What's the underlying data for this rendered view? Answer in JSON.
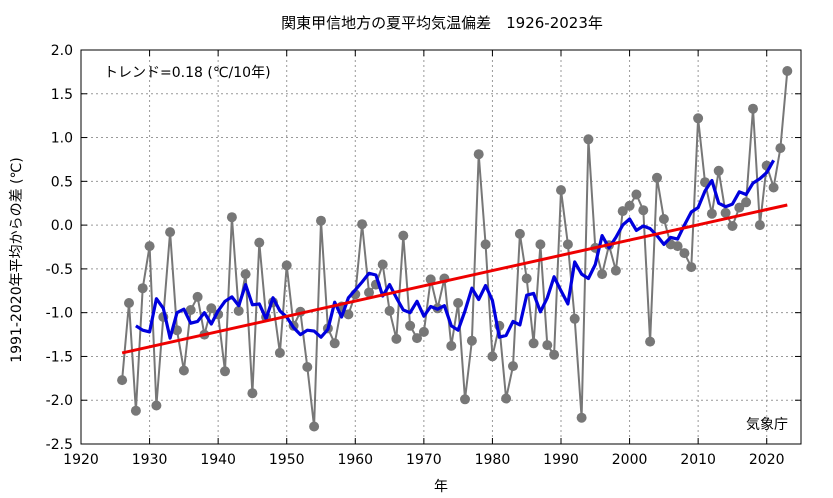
{
  "chart_data": {
    "type": "line",
    "title": "関東甲信地方の夏平均気温偏差　1926-2023年",
    "xlabel": "年",
    "ylabel": "1991-2020年平均からの差 (℃)",
    "xlim": [
      1920,
      2025
    ],
    "ylim": [
      -2.5,
      2.0
    ],
    "x_ticks": [
      "1920",
      "1930",
      "1940",
      "1950",
      "1960",
      "1970",
      "1980",
      "1990",
      "2000",
      "2010",
      "2020"
    ],
    "y_ticks": [
      "2.0",
      "1.5",
      "1.0",
      "0.5",
      "0.0",
      "-0.5",
      "-1.0",
      "-1.5",
      "-2.0",
      "-2.5"
    ],
    "grid": true,
    "annotations": {
      "trend": "トレンド=0.18 (℃/10年)",
      "source": "気象庁"
    },
    "colors": {
      "annual": "#777777",
      "moving_average": "#0000dd",
      "trend": "#ee0000"
    },
    "series": [
      {
        "type": "line+markers",
        "x": [
          1926,
          1927,
          1928,
          1929,
          1930,
          1931,
          1932,
          1933,
          1934,
          1935,
          1936,
          1937,
          1938,
          1939,
          1940,
          1941,
          1942,
          1943,
          1944,
          1945,
          1946,
          1947,
          1948,
          1949,
          1950,
          1951,
          1952,
          1953,
          1954,
          1955,
          1956,
          1957,
          1958,
          1959,
          1960,
          1961,
          1962,
          1963,
          1964,
          1965,
          1966,
          1967,
          1968,
          1969,
          1970,
          1971,
          1972,
          1973,
          1974,
          1975,
          1976,
          1977,
          1978,
          1979,
          1980,
          1981,
          1982,
          1983,
          1984,
          1985,
          1986,
          1987,
          1988,
          1989,
          1990,
          1991,
          1992,
          1993,
          1994,
          1995,
          1996,
          1997,
          1998,
          1999,
          2000,
          2001,
          2002,
          2003,
          2004,
          2005,
          2006,
          2007,
          2008,
          2009,
          2010,
          2011,
          2012,
          2013,
          2014,
          2015,
          2016,
          2017,
          2018,
          2019,
          2020,
          2021,
          2022,
          2023
        ],
        "values": [
          -1.77,
          -0.89,
          -2.12,
          -0.72,
          -0.24,
          -2.06,
          -1.05,
          -0.08,
          -1.2,
          -1.66,
          -0.97,
          -0.82,
          -1.25,
          -0.95,
          -1.02,
          -1.67,
          0.09,
          -0.98,
          -0.56,
          -1.92,
          -0.2,
          -1.05,
          -0.88,
          -1.46,
          -0.46,
          -1.15,
          -0.99,
          -1.62,
          -2.3,
          0.05,
          -1.18,
          -1.35,
          -0.93,
          -1.02,
          -0.79,
          0.01,
          -0.77,
          -0.68,
          -0.45,
          -0.98,
          -1.3,
          -0.12,
          -1.15,
          -1.29,
          -1.22,
          -0.62,
          -0.95,
          -0.61,
          -1.38,
          -0.89,
          -1.99,
          -1.32,
          0.81,
          -0.22,
          -1.5,
          -1.15,
          -1.98,
          -1.61,
          -0.1,
          -0.61,
          -1.35,
          -0.22,
          -1.37,
          -1.48,
          0.4,
          -0.22,
          -1.07,
          -2.2,
          0.98,
          -0.26,
          -0.56,
          -0.23,
          -0.52,
          0.16,
          0.22,
          0.35,
          0.17,
          -1.33,
          0.54,
          0.07,
          -0.22,
          -0.24,
          -0.32,
          -0.48,
          1.22,
          0.49,
          0.13,
          0.62,
          0.14,
          -0.01,
          0.2,
          0.26,
          1.33,
          0.0,
          0.68,
          0.43,
          0.88,
          1.76
        ]
      },
      {
        "type": "line",
        "x": [
          1928,
          1929,
          1930,
          1931,
          1932,
          1933,
          1934,
          1935,
          1936,
          1937,
          1938,
          1939,
          1940,
          1941,
          1942,
          1943,
          1944,
          1945,
          1946,
          1947,
          1948,
          1949,
          1950,
          1951,
          1952,
          1953,
          1954,
          1955,
          1956,
          1957,
          1958,
          1959,
          1960,
          1961,
          1962,
          1963,
          1964,
          1965,
          1966,
          1967,
          1968,
          1969,
          1970,
          1971,
          1972,
          1973,
          1974,
          1975,
          1976,
          1977,
          1978,
          1979,
          1980,
          1981,
          1982,
          1983,
          1984,
          1985,
          1986,
          1987,
          1988,
          1989,
          1990,
          1991,
          1992,
          1993,
          1994,
          1995,
          1996,
          1997,
          1998,
          1999,
          2000,
          2001,
          2002,
          2003,
          2004,
          2005,
          2006,
          2007,
          2008,
          2009,
          2010,
          2011,
          2012,
          2013,
          2014,
          2015,
          2016,
          2017,
          2018,
          2019,
          2020,
          2021
        ],
        "values": [
          -1.15,
          -1.2,
          -1.22,
          -0.84,
          -0.95,
          -1.29,
          -1.0,
          -0.96,
          -1.12,
          -1.1,
          -1.0,
          -1.13,
          -0.98,
          -0.87,
          -0.82,
          -0.92,
          -0.68,
          -0.91,
          -0.9,
          -1.07,
          -0.83,
          -0.98,
          -1.05,
          -1.17,
          -1.25,
          -1.2,
          -1.21,
          -1.28,
          -1.19,
          -0.88,
          -1.05,
          -0.83,
          -0.74,
          -0.65,
          -0.55,
          -0.57,
          -0.81,
          -0.68,
          -0.83,
          -0.97,
          -1.0,
          -0.87,
          -1.04,
          -0.93,
          -0.96,
          -0.92,
          -1.15,
          -1.2,
          -0.98,
          -0.72,
          -0.85,
          -0.69,
          -0.86,
          -1.28,
          -1.26,
          -1.1,
          -1.14,
          -0.8,
          -0.78,
          -0.99,
          -0.83,
          -0.59,
          -0.75,
          -0.9,
          -0.42,
          -0.56,
          -0.61,
          -0.45,
          -0.12,
          -0.26,
          -0.14,
          0.0,
          0.07,
          -0.06,
          -0.01,
          -0.04,
          -0.12,
          -0.22,
          -0.14,
          -0.16,
          0.0,
          0.15,
          0.2,
          0.39,
          0.51,
          0.25,
          0.21,
          0.24,
          0.38,
          0.35,
          0.48,
          0.53,
          0.6,
          0.74
        ]
      },
      {
        "type": "trend",
        "x": [
          1926,
          2023
        ],
        "values": [
          -1.46,
          0.23
        ]
      }
    ]
  }
}
